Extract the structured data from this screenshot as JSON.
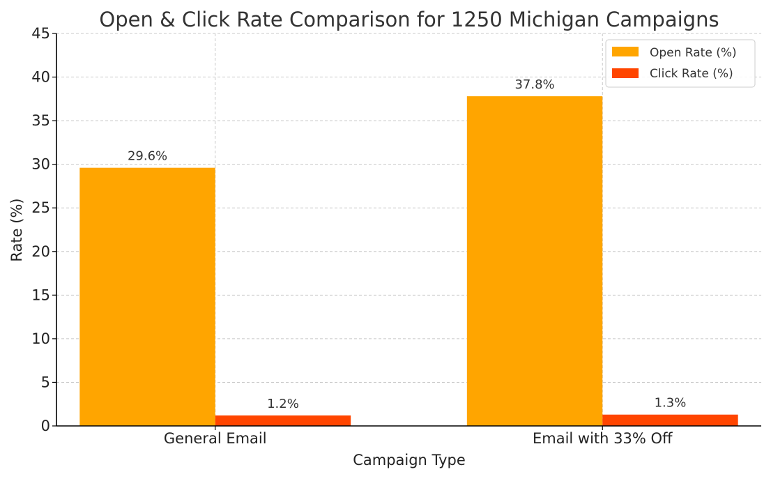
{
  "chart_data": {
    "type": "bar",
    "title": "Open & Click Rate Comparison for 1250 Michigan Campaigns",
    "xlabel": "Campaign Type",
    "ylabel": "Rate (%)",
    "categories": [
      "General Email",
      "Email with 33% Off"
    ],
    "series": [
      {
        "name": "Open Rate (%)",
        "values": [
          29.6,
          37.8
        ],
        "labels": [
          "29.6%",
          "37.8%"
        ],
        "color": "#FFA500"
      },
      {
        "name": "Click Rate (%)",
        "values": [
          1.2,
          1.3
        ],
        "labels": [
          "1.2%",
          "1.3%"
        ],
        "color": "#FF4500"
      }
    ],
    "ylim": [
      0,
      45
    ],
    "yticks": [
      0,
      5,
      10,
      15,
      20,
      25,
      30,
      35,
      40,
      45
    ],
    "grid": true,
    "legend": "top-right"
  }
}
